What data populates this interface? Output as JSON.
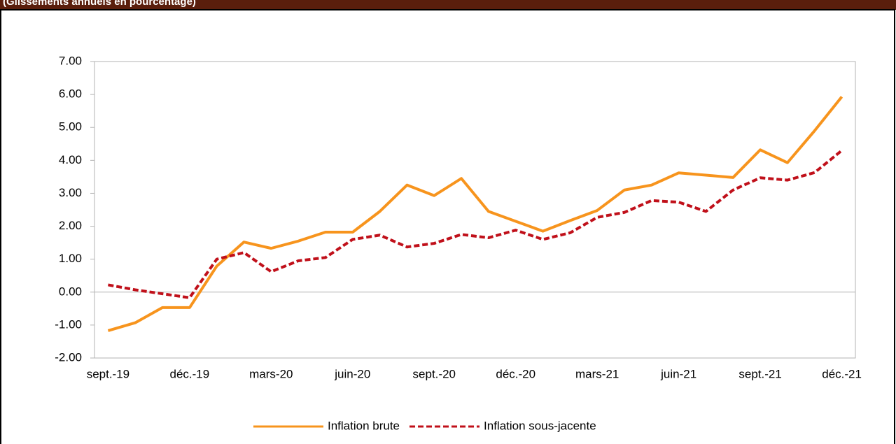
{
  "chart_data": {
    "type": "line",
    "title": "(Glissements annuels en pourcentage)",
    "categories": [
      "sept.-19",
      null,
      null,
      "déc.-19",
      null,
      null,
      "mars-20",
      null,
      null,
      "juin-20",
      null,
      null,
      "sept.-20",
      null,
      null,
      "déc.-20",
      null,
      null,
      "mars-21",
      null,
      null,
      "juin-21",
      null,
      null,
      "sept.-21",
      null,
      null,
      "déc.-21"
    ],
    "series": [
      {
        "name": "Inflation brute",
        "color": "#f7941d",
        "dash": false,
        "values": [
          -1.17,
          -0.93,
          -0.47,
          -0.47,
          0.79,
          1.52,
          1.33,
          1.55,
          1.82,
          1.82,
          2.45,
          3.25,
          2.93,
          3.45,
          2.45,
          2.15,
          1.85,
          2.17,
          2.48,
          3.1,
          3.25,
          3.62,
          3.55,
          3.48,
          4.32,
          3.93,
          4.9,
          5.93
        ]
      },
      {
        "name": "Inflation sous-jacente",
        "color": "#c0101a",
        "dash": true,
        "values": [
          0.22,
          0.07,
          -0.05,
          -0.17,
          1.0,
          1.2,
          0.62,
          0.95,
          1.05,
          1.6,
          1.73,
          1.37,
          1.48,
          1.75,
          1.65,
          1.88,
          1.6,
          1.8,
          2.27,
          2.42,
          2.78,
          2.73,
          2.45,
          3.1,
          3.47,
          3.4,
          3.63,
          4.3
        ]
      }
    ],
    "ylim": [
      -2,
      7
    ],
    "yticks": [
      {
        "value": -2,
        "label": "-2.00"
      },
      {
        "value": -1,
        "label": "-1.00"
      },
      {
        "value": 0,
        "label": "0.00"
      },
      {
        "value": 1,
        "label": "1.00"
      },
      {
        "value": 2,
        "label": "2.00"
      },
      {
        "value": 3,
        "label": "3.00"
      },
      {
        "value": 4,
        "label": "4.00"
      },
      {
        "value": 5,
        "label": "5.00"
      },
      {
        "value": 6,
        "label": "6.00"
      },
      {
        "value": 7,
        "label": "7.00"
      }
    ],
    "grid": false,
    "legend": "bottom"
  }
}
